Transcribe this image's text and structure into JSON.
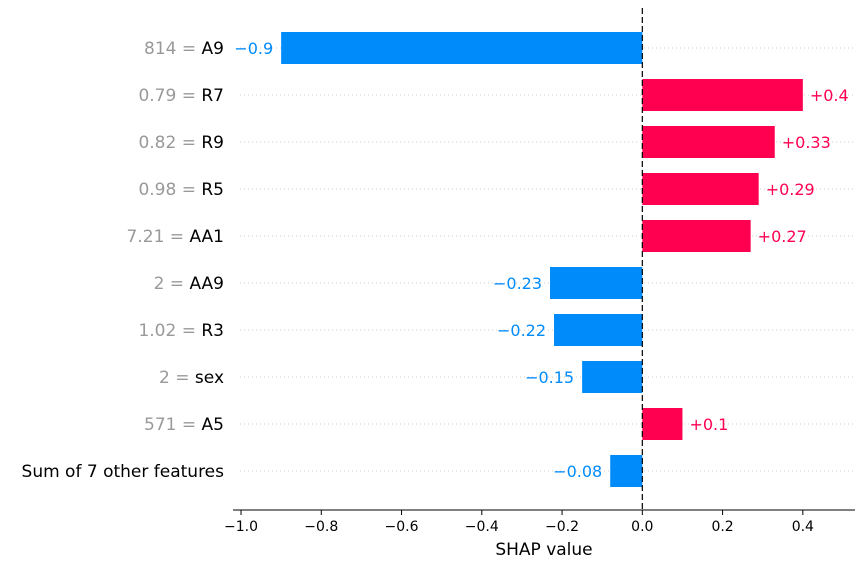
{
  "chart_data": {
    "type": "bar",
    "orientation": "horizontal",
    "xlabel": "SHAP value",
    "xlim": [
      -1.02,
      0.53
    ],
    "xticks": [
      -1.0,
      -0.8,
      -0.6,
      -0.4,
      -0.2,
      0.0,
      0.2,
      0.4
    ],
    "xtick_labels": [
      "−1.0",
      "−0.8",
      "−0.6",
      "−0.4",
      "−0.2",
      "0.0",
      "0.2",
      "0.4"
    ],
    "grid": "horizontal dotted lines per feature",
    "features": [
      {
        "value": "814",
        "name": "A9",
        "shap": -0.9,
        "label": "−0.9"
      },
      {
        "value": "0.79",
        "name": "R7",
        "shap": 0.4,
        "label": "+0.4"
      },
      {
        "value": "0.82",
        "name": "R9",
        "shap": 0.33,
        "label": "+0.33"
      },
      {
        "value": "0.98",
        "name": "R5",
        "shap": 0.29,
        "label": "+0.29"
      },
      {
        "value": "7.21",
        "name": "AA1",
        "shap": 0.27,
        "label": "+0.27"
      },
      {
        "value": "2",
        "name": "AA9",
        "shap": -0.23,
        "label": "−0.23"
      },
      {
        "value": "1.02",
        "name": "R3",
        "shap": -0.22,
        "label": "−0.22"
      },
      {
        "value": "2",
        "name": "sex",
        "shap": -0.15,
        "label": "−0.15"
      },
      {
        "value": "571",
        "name": "A5",
        "shap": 0.1,
        "label": "+0.1"
      },
      {
        "value": "",
        "name": "Sum of 7 other features",
        "shap": -0.08,
        "label": "−0.08"
      }
    ],
    "colors": {
      "positive": "#ff0051",
      "negative": "#008bfb",
      "feature_value": "#999999",
      "feature_name": "#000000"
    }
  }
}
